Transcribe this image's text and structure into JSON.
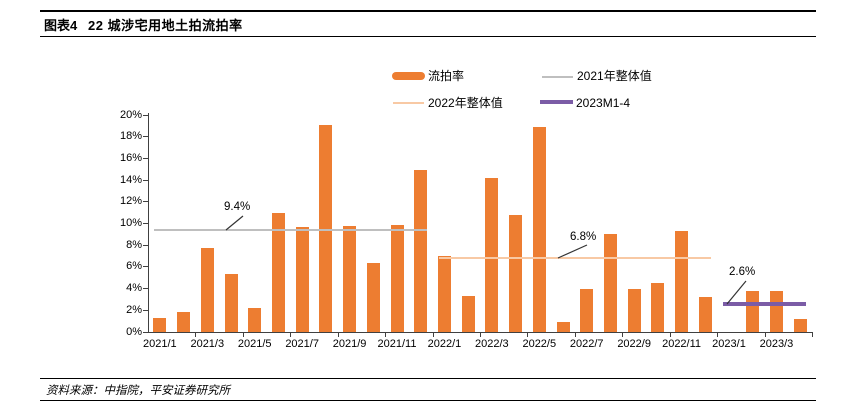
{
  "figure": {
    "tag": "图表4",
    "title": "22 城涉宅用地土拍流拍率"
  },
  "legend": [
    {
      "label": "流拍率",
      "color": "#ED7D31",
      "type": "bar"
    },
    {
      "label": "2021年整体值",
      "color": "#BFBFBF",
      "type": "line"
    },
    {
      "label": "2022年整体值",
      "color": "#F8C9A4",
      "type": "line"
    },
    {
      "label": "2023M1-4",
      "color": "#7B5CA6",
      "type": "thick-line"
    }
  ],
  "chart_data": {
    "type": "bar",
    "title": "22 城涉宅用地土拍流拍率",
    "series_name": "流拍率",
    "bar_color": "#ED7D31",
    "categories": [
      "2021/1",
      "2021/2",
      "2021/3",
      "2021/4",
      "2021/5",
      "2021/6",
      "2021/7",
      "2021/8",
      "2021/9",
      "2021/10",
      "2021/11",
      "2021/12",
      "2022/1",
      "2022/2",
      "2022/3",
      "2022/4",
      "2022/5",
      "2022/6",
      "2022/7",
      "2022/8",
      "2022/9",
      "2022/10",
      "2022/11",
      "2022/12",
      "2023/1",
      "2023/2",
      "2023/3",
      "2023/4"
    ],
    "values": [
      1.3,
      1.8,
      7.7,
      5.3,
      2.2,
      11.0,
      9.7,
      19.1,
      9.8,
      6.4,
      9.9,
      14.9,
      7.0,
      3.3,
      14.2,
      10.8,
      18.9,
      0.9,
      4.0,
      9.0,
      4.0,
      4.5,
      9.3,
      3.2,
      0,
      3.8,
      3.8,
      1.2
    ],
    "ylim": [
      0,
      20
    ],
    "ytick_labels": [
      "0%",
      "2%",
      "4%",
      "6%",
      "8%",
      "10%",
      "12%",
      "14%",
      "16%",
      "18%",
      "20%"
    ],
    "xtick_labels": [
      "2021/1",
      "2021/3",
      "2021/5",
      "2021/7",
      "2021/9",
      "2021/11",
      "2022/1",
      "2022/3",
      "2022/5",
      "2022/7",
      "2022/9",
      "2022/11",
      "2023/1",
      "2023/3"
    ],
    "grid": false,
    "legend_position": "top",
    "reference_lines": [
      {
        "name": "2021年整体值",
        "value": 9.4,
        "annotation": "9.4%",
        "start": "2021/1",
        "end": "2021/12",
        "color": "#BFBFBF",
        "thickness": 2
      },
      {
        "name": "2022年整体值",
        "value": 6.8,
        "annotation": "6.8%",
        "start": "2022/1",
        "end": "2022/12",
        "color": "#F8C9A4",
        "thickness": 2
      },
      {
        "name": "2023M1-4",
        "value": 2.6,
        "annotation": "2.6%",
        "start": "2023/1",
        "end": "2023/4",
        "color": "#7B5CA6",
        "thickness": 4
      }
    ]
  },
  "footer": {
    "source": "资料来源：中指院，平安证券研究所"
  }
}
